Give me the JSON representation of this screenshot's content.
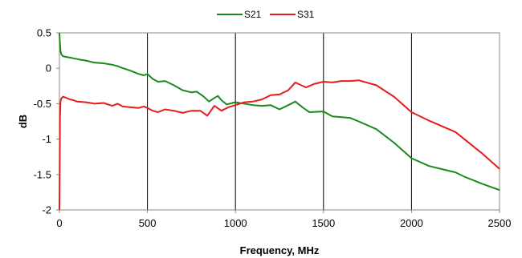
{
  "chart_data": {
    "type": "line",
    "title": "",
    "xlabel": "Frequency, MHz",
    "ylabel": "dB",
    "xlim": [
      0,
      2500
    ],
    "ylim": [
      -2,
      0.5
    ],
    "x_ticks": [
      0,
      500,
      1000,
      1500,
      2000,
      2500
    ],
    "x_tick_labels": [
      "0",
      "500",
      "1000",
      "1500",
      "2000",
      "2500"
    ],
    "y_ticks": [
      0.5,
      0,
      -0.5,
      -1,
      -1.5,
      -2
    ],
    "y_tick_labels": [
      "0.5",
      "0",
      "-0.5",
      "-1",
      "-1.5",
      "-2"
    ],
    "grid": "vertical",
    "legend_position": "top-center",
    "series": [
      {
        "name": "S21",
        "color": "#1a8a1a",
        "points": [
          [
            0,
            0.5
          ],
          [
            3,
            0.35
          ],
          [
            6,
            0.25
          ],
          [
            10,
            0.2
          ],
          [
            20,
            0.17
          ],
          [
            40,
            0.16
          ],
          [
            60,
            0.15
          ],
          [
            80,
            0.14
          ],
          [
            100,
            0.13
          ],
          [
            120,
            0.12
          ],
          [
            150,
            0.11
          ],
          [
            180,
            0.09
          ],
          [
            200,
            0.08
          ],
          [
            250,
            0.07
          ],
          [
            300,
            0.05
          ],
          [
            330,
            0.03
          ],
          [
            350,
            0.01
          ],
          [
            400,
            -0.03
          ],
          [
            450,
            -0.08
          ],
          [
            480,
            -0.1
          ],
          [
            500,
            -0.08
          ],
          [
            530,
            -0.15
          ],
          [
            560,
            -0.19
          ],
          [
            600,
            -0.18
          ],
          [
            650,
            -0.24
          ],
          [
            700,
            -0.31
          ],
          [
            750,
            -0.34
          ],
          [
            780,
            -0.33
          ],
          [
            820,
            -0.4
          ],
          [
            850,
            -0.47
          ],
          [
            880,
            -0.42
          ],
          [
            900,
            -0.39
          ],
          [
            920,
            -0.45
          ],
          [
            950,
            -0.51
          ],
          [
            1000,
            -0.48
          ],
          [
            1050,
            -0.5
          ],
          [
            1100,
            -0.52
          ],
          [
            1150,
            -0.53
          ],
          [
            1200,
            -0.52
          ],
          [
            1250,
            -0.58
          ],
          [
            1300,
            -0.52
          ],
          [
            1340,
            -0.47
          ],
          [
            1380,
            -0.55
          ],
          [
            1420,
            -0.62
          ],
          [
            1500,
            -0.61
          ],
          [
            1550,
            -0.68
          ],
          [
            1650,
            -0.7
          ],
          [
            1700,
            -0.75
          ],
          [
            1800,
            -0.86
          ],
          [
            1900,
            -1.05
          ],
          [
            2000,
            -1.27
          ],
          [
            2100,
            -1.38
          ],
          [
            2200,
            -1.44
          ],
          [
            2250,
            -1.47
          ],
          [
            2300,
            -1.53
          ],
          [
            2400,
            -1.63
          ],
          [
            2500,
            -1.72
          ]
        ]
      },
      {
        "name": "S31",
        "color": "#e81c1c",
        "points": [
          [
            0,
            -2
          ],
          [
            3,
            -0.7
          ],
          [
            6,
            -0.48
          ],
          [
            10,
            -0.43
          ],
          [
            20,
            -0.4
          ],
          [
            40,
            -0.42
          ],
          [
            60,
            -0.44
          ],
          [
            80,
            -0.45
          ],
          [
            100,
            -0.47
          ],
          [
            150,
            -0.48
          ],
          [
            200,
            -0.5
          ],
          [
            250,
            -0.49
          ],
          [
            300,
            -0.53
          ],
          [
            330,
            -0.5
          ],
          [
            360,
            -0.54
          ],
          [
            400,
            -0.55
          ],
          [
            450,
            -0.56
          ],
          [
            480,
            -0.54
          ],
          [
            500,
            -0.56
          ],
          [
            530,
            -0.6
          ],
          [
            560,
            -0.62
          ],
          [
            600,
            -0.58
          ],
          [
            650,
            -0.6
          ],
          [
            700,
            -0.63
          ],
          [
            750,
            -0.6
          ],
          [
            800,
            -0.6
          ],
          [
            840,
            -0.67
          ],
          [
            880,
            -0.53
          ],
          [
            920,
            -0.6
          ],
          [
            960,
            -0.55
          ],
          [
            1000,
            -0.52
          ],
          [
            1050,
            -0.48
          ],
          [
            1100,
            -0.47
          ],
          [
            1150,
            -0.44
          ],
          [
            1200,
            -0.38
          ],
          [
            1250,
            -0.37
          ],
          [
            1300,
            -0.31
          ],
          [
            1340,
            -0.2
          ],
          [
            1400,
            -0.27
          ],
          [
            1450,
            -0.22
          ],
          [
            1500,
            -0.19
          ],
          [
            1550,
            -0.2
          ],
          [
            1600,
            -0.18
          ],
          [
            1650,
            -0.18
          ],
          [
            1700,
            -0.17
          ],
          [
            1800,
            -0.24
          ],
          [
            1900,
            -0.4
          ],
          [
            2000,
            -0.62
          ],
          [
            2100,
            -0.74
          ],
          [
            2250,
            -0.9
          ],
          [
            2400,
            -1.2
          ],
          [
            2500,
            -1.42
          ]
        ]
      }
    ]
  }
}
